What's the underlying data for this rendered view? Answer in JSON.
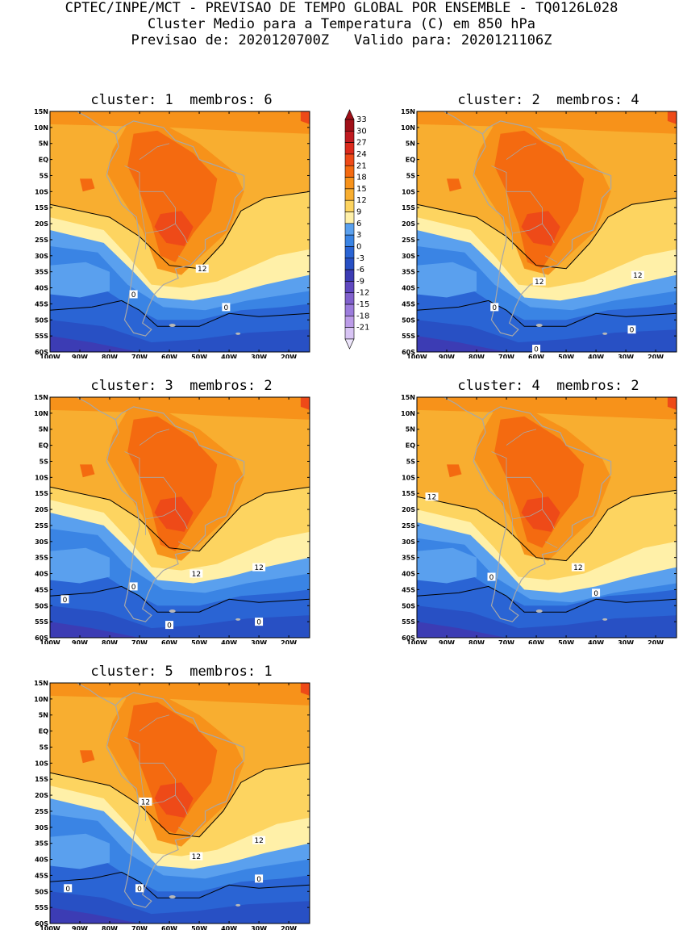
{
  "header": {
    "line1": "CPTEC/INPE/MCT - PREVISAO DE TEMPO GLOBAL POR ENSEMBLE - TQ0126L028",
    "line2": "Cluster Medio para a Temperatura (C) em 850 hPa",
    "line3": "Previsao de: 2020120700Z   Valido para: 2020121106Z"
  },
  "panels": [
    {
      "title": "cluster: 1  membros: 6"
    },
    {
      "title": "cluster: 2  membros: 4"
    },
    {
      "title": "cluster: 3  membros: 2"
    },
    {
      "title": "cluster: 4  membros: 2"
    },
    {
      "title": "cluster: 5  membros: 1"
    }
  ],
  "axes": {
    "lat_labels": [
      "15N",
      "10N",
      "5N",
      "EQ",
      "5S",
      "10S",
      "15S",
      "20S",
      "25S",
      "30S",
      "35S",
      "40S",
      "45S",
      "50S",
      "55S",
      "60S"
    ],
    "lon_labels": [
      "100W",
      "90W",
      "80W",
      "70W",
      "60W",
      "50W",
      "40W",
      "30W",
      "20W"
    ]
  },
  "colorbar": {
    "labels": [
      "33",
      "30",
      "27",
      "24",
      "21",
      "18",
      "15",
      "12",
      "9",
      "6",
      "3",
      "0",
      "-3",
      "-6",
      "-9",
      "-12",
      "-15",
      "-18",
      "-21"
    ],
    "colors": [
      "#a01018",
      "#c01a20",
      "#dc2a1c",
      "#ee4a18",
      "#f46a10",
      "#f7921a",
      "#f8ae30",
      "#fdd460",
      "#fff0a8",
      "#5aa0ee",
      "#3a84e4",
      "#2a64d4",
      "#2850c4",
      "#3c3cb4",
      "#6048c0",
      "#8060cc",
      "#9c7cdc",
      "#bc9ce8",
      "#d8c4f4"
    ]
  },
  "contour_labels": {
    "twelve": "12",
    "zero": "0"
  }
}
